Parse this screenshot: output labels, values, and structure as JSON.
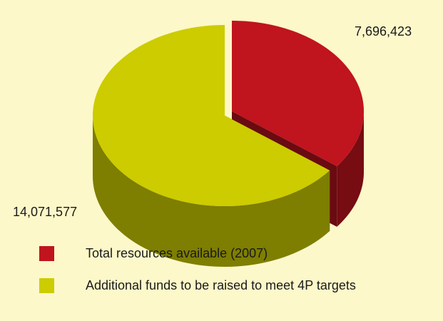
{
  "chart_data": {
    "type": "pie",
    "categories": [
      "Total resources available (2007)",
      "Additional funds to be raised to meet 4P targets"
    ],
    "values": [
      7696423,
      14071577
    ],
    "value_labels": [
      "7,696,423",
      "14,071,577"
    ],
    "colors": [
      "#c0141e",
      "#cccc00"
    ]
  }
}
